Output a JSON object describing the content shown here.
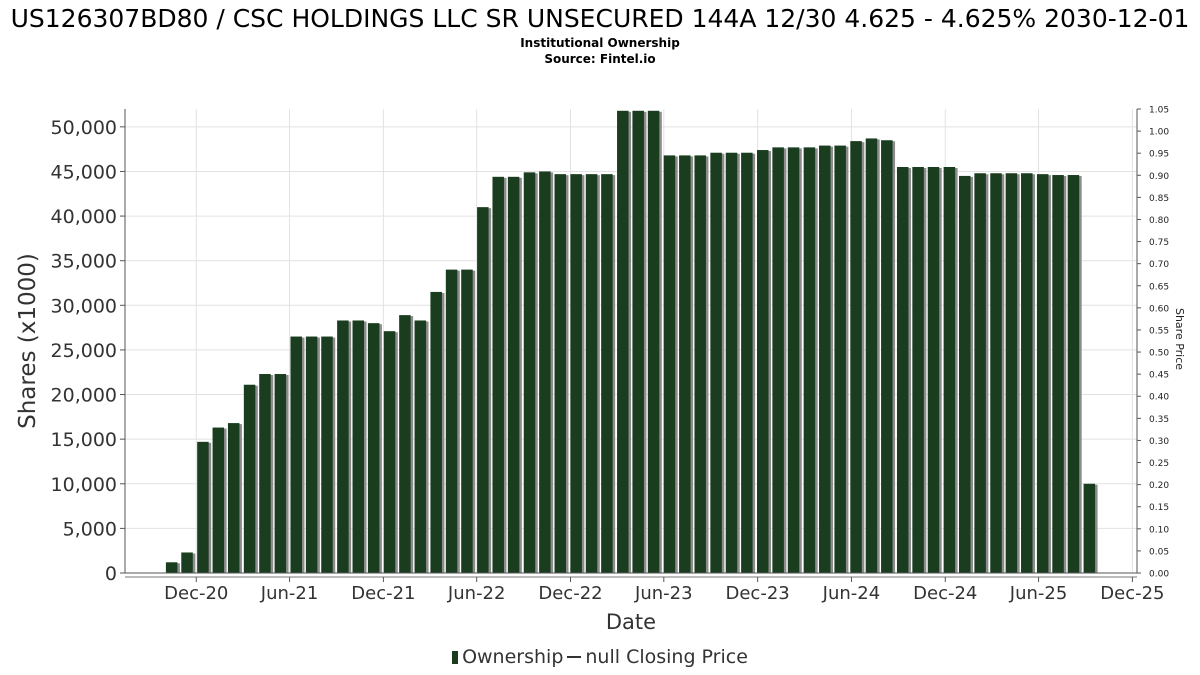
{
  "chart_data": {
    "type": "bar",
    "title": "US126307BD80 / CSC HOLDINGS LLC SR UNSECURED 144A 12/30 4.625 - 4.625% 2030-12-01",
    "subtitle_lines": [
      "Institutional Ownership",
      "Source: Fintel.io"
    ],
    "xlabel": "Date",
    "ylabel": "Shares (x1000)",
    "y2label": "Share Price",
    "ylim": [
      0,
      52000
    ],
    "y2lim": [
      0,
      1.05
    ],
    "x_range": [
      "2020-07-15",
      "2025-12-10"
    ],
    "y_ticks": [
      "0",
      "5,000",
      "10,000",
      "15,000",
      "20,000",
      "25,000",
      "30,000",
      "35,000",
      "40,000",
      "45,000",
      "50,000"
    ],
    "y2_ticks": [
      "0.00",
      "0.05",
      "0.10",
      "0.15",
      "0.20",
      "0.25",
      "0.30",
      "0.35",
      "0.40",
      "0.45",
      "0.50",
      "0.55",
      "0.60",
      "0.65",
      "0.70",
      "0.75",
      "0.80",
      "0.85",
      "0.90",
      "0.95",
      "1.00",
      "1.05"
    ],
    "x_ticks": [
      {
        "date": "2020-12-01",
        "label": "Dec-20"
      },
      {
        "date": "2021-06-01",
        "label": "Jun-21"
      },
      {
        "date": "2021-12-01",
        "label": "Dec-21"
      },
      {
        "date": "2022-06-01",
        "label": "Jun-22"
      },
      {
        "date": "2022-12-01",
        "label": "Dec-22"
      },
      {
        "date": "2023-06-01",
        "label": "Jun-23"
      },
      {
        "date": "2023-12-01",
        "label": "Dec-23"
      },
      {
        "date": "2024-06-01",
        "label": "Jun-24"
      },
      {
        "date": "2024-12-01",
        "label": "Dec-24"
      },
      {
        "date": "2025-06-01",
        "label": "Jun-25"
      },
      {
        "date": "2025-12-01",
        "label": "Dec-25"
      }
    ],
    "grid": true,
    "legend_position": "bottom",
    "series": [
      {
        "name": "Ownership",
        "color": "#1a3d1f",
        "x": [
          "2020-10-14",
          "2020-11-13",
          "2020-12-14",
          "2021-01-13",
          "2021-02-12",
          "2021-03-15",
          "2021-04-14",
          "2021-05-14",
          "2021-06-14",
          "2021-07-14",
          "2021-08-13",
          "2021-09-13",
          "2021-10-13",
          "2021-11-12",
          "2021-12-13",
          "2022-01-12",
          "2022-02-11",
          "2022-03-14",
          "2022-04-13",
          "2022-05-13",
          "2022-06-13",
          "2022-07-13",
          "2022-08-12",
          "2022-09-12",
          "2022-10-12",
          "2022-11-11",
          "2022-12-12",
          "2023-01-11",
          "2023-02-10",
          "2023-03-13",
          "2023-04-12",
          "2023-05-12",
          "2023-06-12",
          "2023-07-12",
          "2023-08-11",
          "2023-09-11",
          "2023-10-11",
          "2023-11-10",
          "2023-12-11",
          "2024-01-10",
          "2024-02-09",
          "2024-03-11",
          "2024-04-10",
          "2024-05-10",
          "2024-06-10",
          "2024-07-10",
          "2024-08-09",
          "2024-09-09",
          "2024-10-09",
          "2024-11-08",
          "2024-12-09",
          "2025-01-08",
          "2025-02-07",
          "2025-03-10",
          "2025-04-09",
          "2025-05-09",
          "2025-06-09",
          "2025-07-09",
          "2025-08-08",
          "2025-09-08"
        ],
        "values": [
          1200,
          2300,
          14700,
          16300,
          16800,
          21100,
          22300,
          22300,
          26500,
          26500,
          26500,
          28300,
          28300,
          28000,
          27100,
          28900,
          28300,
          31500,
          34000,
          34000,
          41000,
          44400,
          44400,
          44900,
          45000,
          44700,
          44700,
          44700,
          44700,
          51800,
          51800,
          51800,
          46800,
          46800,
          46800,
          47100,
          47100,
          47100,
          47400,
          47700,
          47700,
          47700,
          47900,
          47900,
          48400,
          48700,
          48500,
          45500,
          45500,
          45500,
          45500,
          44500,
          44800,
          44800,
          44800,
          44800,
          44700,
          44600,
          44600,
          10000
        ]
      },
      {
        "name": "null Closing Price",
        "color": "#333333",
        "values": []
      }
    ]
  }
}
